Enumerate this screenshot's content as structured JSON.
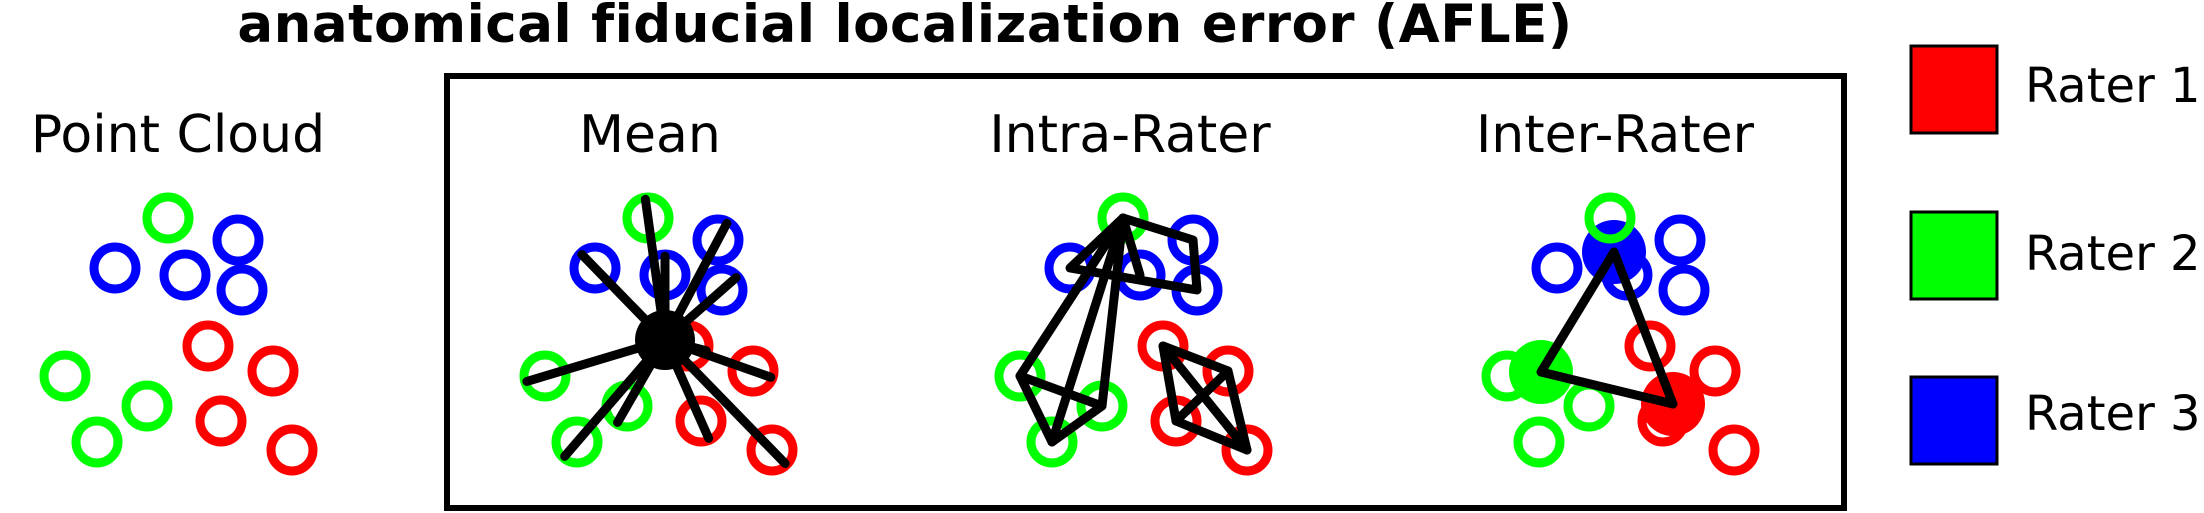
{
  "title": "anatomical fiducial localization error (AFLE)",
  "panels": {
    "point_cloud": "Point Cloud",
    "mean": "Mean",
    "intra_rater": "Intra-Rater",
    "inter_rater": "Inter-Rater"
  },
  "legend": [
    {
      "label": "Rater 1",
      "color": "#ff0000"
    },
    {
      "label": "Rater 2",
      "color": "#00ff00"
    },
    {
      "label": "Rater 3",
      "color": "#0000ff"
    }
  ],
  "colors": {
    "rater1": "#ff0000",
    "rater2": "#00ff00",
    "rater3": "#0000ff",
    "line": "#000000"
  }
}
